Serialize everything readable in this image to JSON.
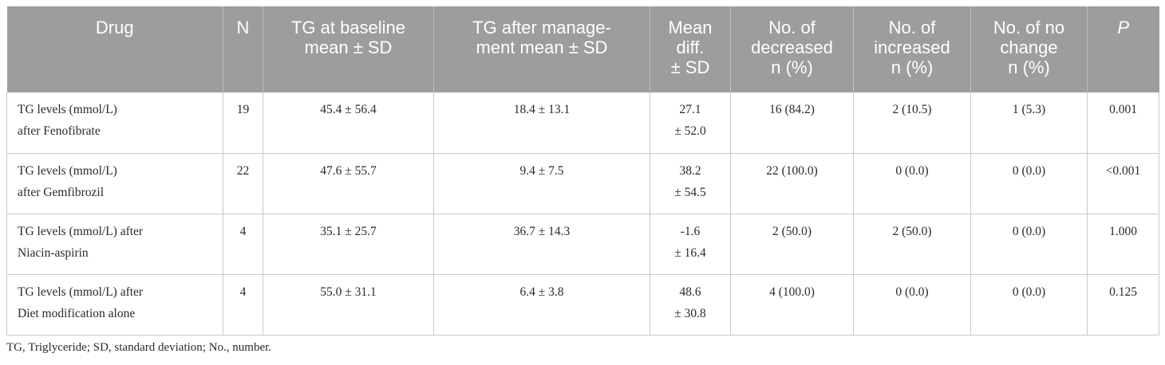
{
  "table": {
    "headers": [
      [
        "Drug"
      ],
      [
        "N"
      ],
      [
        "TG at baseline",
        "mean ± SD"
      ],
      [
        "TG after manage-",
        "ment mean ± SD"
      ],
      [
        "Mean",
        "diff.",
        "± SD"
      ],
      [
        "No. of",
        "decreased",
        "n (%)"
      ],
      [
        "No. of",
        "increased",
        "n (%)"
      ],
      [
        "No. of no",
        "change",
        "n (%)"
      ],
      [
        "P"
      ]
    ],
    "rows": [
      {
        "drug": [
          "TG levels (mmol/L)",
          "after Fenofibrate"
        ],
        "n": "19",
        "baseline": "45.4 ± 56.4",
        "after": "18.4 ± 13.1",
        "mean_diff": [
          "27.1",
          "± 52.0"
        ],
        "decreased": "16 (84.2)",
        "increased": "2 (10.5)",
        "no_change": "1 (5.3)",
        "p": "0.001"
      },
      {
        "drug": [
          "TG levels (mmol/L)",
          "after Gemfibrozil"
        ],
        "n": "22",
        "baseline": "47.6 ± 55.7",
        "after": "9.4 ± 7.5",
        "mean_diff": [
          "38.2",
          "± 54.5"
        ],
        "decreased": "22 (100.0)",
        "increased": "0 (0.0)",
        "no_change": "0 (0.0)",
        "p": "<0.001"
      },
      {
        "drug": [
          "TG levels (mmol/L) after",
          "Niacin-aspirin"
        ],
        "n": "4",
        "baseline": "35.1 ± 25.7",
        "after": "36.7 ± 14.3",
        "mean_diff": [
          "-1.6",
          "± 16.4"
        ],
        "decreased": "2 (50.0)",
        "increased": "2 (50.0)",
        "no_change": "0 (0.0)",
        "p": "1.000"
      },
      {
        "drug": [
          "TG levels (mmol/L) after",
          "Diet modification alone"
        ],
        "n": "4",
        "baseline": "55.0 ± 31.1",
        "after": "6.4 ± 3.8",
        "mean_diff": [
          "48.6",
          "± 30.8"
        ],
        "decreased": "4 (100.0)",
        "increased": "0 (0.0)",
        "no_change": "0 (0.0)",
        "p": "0.125"
      }
    ]
  },
  "footnote": "TG, Triglyceride; SD, standard deviation; No., number."
}
